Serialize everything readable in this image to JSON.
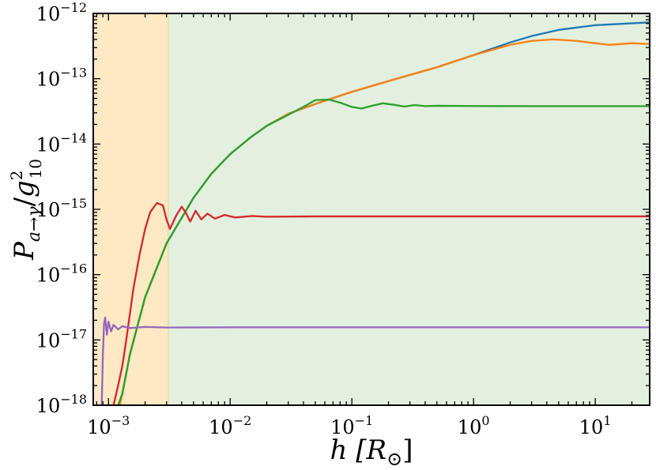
{
  "chart_data": {
    "type": "line",
    "title": "",
    "xlabel": "h [R⊙]",
    "ylabel": "P_{a→γ} / g²₁₀",
    "xscale": "log",
    "yscale": "log",
    "xlim": [
      0.00075,
      28
    ],
    "ylim": [
      1e-18,
      1e-12
    ],
    "x_ticks": [
      {
        "value": 0.001,
        "base": "10",
        "exp": "−3"
      },
      {
        "value": 0.01,
        "base": "10",
        "exp": "−2"
      },
      {
        "value": 0.1,
        "base": "10",
        "exp": "−1"
      },
      {
        "value": 1,
        "base": "10",
        "exp": "0"
      },
      {
        "value": 10,
        "base": "10",
        "exp": "1"
      }
    ],
    "y_ticks": [
      {
        "value": 1e-12,
        "base": "10",
        "exp": "−12"
      },
      {
        "value": 1e-13,
        "base": "10",
        "exp": "−13"
      },
      {
        "value": 1e-14,
        "base": "10",
        "exp": "−14"
      },
      {
        "value": 1e-15,
        "base": "10",
        "exp": "−15"
      },
      {
        "value": 1e-16,
        "base": "10",
        "exp": "−16"
      },
      {
        "value": 1e-17,
        "base": "10",
        "exp": "−17"
      },
      {
        "value": 1e-18,
        "base": "10",
        "exp": "−18"
      }
    ],
    "regions": [
      {
        "x_from": 0.00075,
        "x_to": 0.0031,
        "color": "#fde9c4"
      },
      {
        "x_from": 0.0031,
        "x_to": 28,
        "color": "#e3f0df"
      }
    ],
    "region_boundary_color": "#e8d49a",
    "series": [
      {
        "color": "#1f77b4",
        "points": [
          [
            0.001,
            2e-19
          ],
          [
            0.0013,
            1.5e-18
          ],
          [
            0.0015,
            6e-18
          ],
          [
            0.002,
            4.5e-17
          ],
          [
            0.003,
            3e-16
          ],
          [
            0.005,
            1.5e-15
          ],
          [
            0.007,
            3.5e-15
          ],
          [
            0.01,
            7e-15
          ],
          [
            0.015,
            1.3e-14
          ],
          [
            0.02,
            1.9e-14
          ],
          [
            0.03,
            2.9e-14
          ],
          [
            0.05,
            4.1e-14
          ],
          [
            0.1,
            6.3e-14
          ],
          [
            0.2,
            9.2e-14
          ],
          [
            0.5,
            1.5e-13
          ],
          [
            1,
            2.3e-13
          ],
          [
            2,
            3.6e-13
          ],
          [
            3,
            4.5e-13
          ],
          [
            5,
            5.6e-13
          ],
          [
            10,
            6.6e-13
          ],
          [
            28,
            7.3e-13
          ]
        ]
      },
      {
        "color": "#ff7f0e",
        "points": [
          [
            0.001,
            2e-19
          ],
          [
            0.0013,
            1.5e-18
          ],
          [
            0.0015,
            6e-18
          ],
          [
            0.002,
            4.5e-17
          ],
          [
            0.003,
            3e-16
          ],
          [
            0.005,
            1.5e-15
          ],
          [
            0.007,
            3.5e-15
          ],
          [
            0.01,
            7e-15
          ],
          [
            0.015,
            1.3e-14
          ],
          [
            0.02,
            1.9e-14
          ],
          [
            0.03,
            2.9e-14
          ],
          [
            0.05,
            4.1e-14
          ],
          [
            0.1,
            6.3e-14
          ],
          [
            0.2,
            9.2e-14
          ],
          [
            0.5,
            1.5e-13
          ],
          [
            1,
            2.3e-13
          ],
          [
            2,
            3.3e-13
          ],
          [
            3,
            3.8e-13
          ],
          [
            4.5,
            4e-13
          ],
          [
            7,
            3.8e-13
          ],
          [
            10,
            3.5e-13
          ],
          [
            13,
            3.3e-13
          ],
          [
            20,
            3.5e-13
          ],
          [
            28,
            3.4e-13
          ]
        ]
      },
      {
        "color": "#2ca02c",
        "points": [
          [
            0.0012,
            1e-18
          ],
          [
            0.0013,
            1.5e-18
          ],
          [
            0.0015,
            6e-18
          ],
          [
            0.002,
            4.5e-17
          ],
          [
            0.003,
            3e-16
          ],
          [
            0.005,
            1.5e-15
          ],
          [
            0.007,
            3.5e-15
          ],
          [
            0.01,
            7e-15
          ],
          [
            0.015,
            1.3e-14
          ],
          [
            0.02,
            1.9e-14
          ],
          [
            0.03,
            2.8e-14
          ],
          [
            0.04,
            3.7e-14
          ],
          [
            0.05,
            4.7e-14
          ],
          [
            0.065,
            4.8e-14
          ],
          [
            0.08,
            4.3e-14
          ],
          [
            0.1,
            3.7e-14
          ],
          [
            0.12,
            3.5e-14
          ],
          [
            0.15,
            3.9e-14
          ],
          [
            0.18,
            4.2e-14
          ],
          [
            0.22,
            4e-14
          ],
          [
            0.27,
            3.75e-14
          ],
          [
            0.33,
            3.95e-14
          ],
          [
            0.4,
            3.8e-14
          ],
          [
            0.5,
            3.85e-14
          ],
          [
            1,
            3.82e-14
          ],
          [
            3,
            3.8e-14
          ],
          [
            10,
            3.8e-14
          ],
          [
            28,
            3.8e-14
          ]
        ]
      },
      {
        "color": "#d62728",
        "points": [
          [
            0.0011,
            1e-18
          ],
          [
            0.0012,
            2e-18
          ],
          [
            0.0013,
            4e-18
          ],
          [
            0.0014,
            1e-17
          ],
          [
            0.0015,
            2.5e-17
          ],
          [
            0.0016,
            6e-17
          ],
          [
            0.0018,
            2e-16
          ],
          [
            0.002,
            5e-16
          ],
          [
            0.0022,
            9e-16
          ],
          [
            0.0025,
            1.25e-15
          ],
          [
            0.0028,
            1.15e-15
          ],
          [
            0.003,
            7e-16
          ],
          [
            0.0032,
            5e-16
          ],
          [
            0.0036,
            8e-16
          ],
          [
            0.004,
            1.1e-15
          ],
          [
            0.0043,
            9e-16
          ],
          [
            0.0047,
            6.5e-16
          ],
          [
            0.0052,
            9.5e-16
          ],
          [
            0.0058,
            7e-16
          ],
          [
            0.0065,
            8.6e-16
          ],
          [
            0.0075,
            7.2e-16
          ],
          [
            0.009,
            8.2e-16
          ],
          [
            0.011,
            7.5e-16
          ],
          [
            0.015,
            7.9e-16
          ],
          [
            0.02,
            7.7e-16
          ],
          [
            0.05,
            7.8e-16
          ],
          [
            0.2,
            7.8e-16
          ],
          [
            1,
            7.8e-16
          ],
          [
            28,
            7.8e-16
          ]
        ]
      },
      {
        "color": "#9467bd",
        "points": [
          [
            0.00088,
            1e-18
          ],
          [
            0.0009,
            6e-18
          ],
          [
            0.00092,
            1.8e-17
          ],
          [
            0.00094,
            2.2e-17
          ],
          [
            0.00097,
            1.2e-17
          ],
          [
            0.001,
            1.9e-17
          ],
          [
            0.00105,
            1.35e-17
          ],
          [
            0.0011,
            1.7e-17
          ],
          [
            0.0012,
            1.45e-17
          ],
          [
            0.0013,
            1.62e-17
          ],
          [
            0.0015,
            1.52e-17
          ],
          [
            0.002,
            1.58e-17
          ],
          [
            0.003,
            1.55e-17
          ],
          [
            0.01,
            1.56e-17
          ],
          [
            0.1,
            1.56e-17
          ],
          [
            1,
            1.56e-17
          ],
          [
            28,
            1.56e-17
          ]
        ]
      }
    ]
  }
}
